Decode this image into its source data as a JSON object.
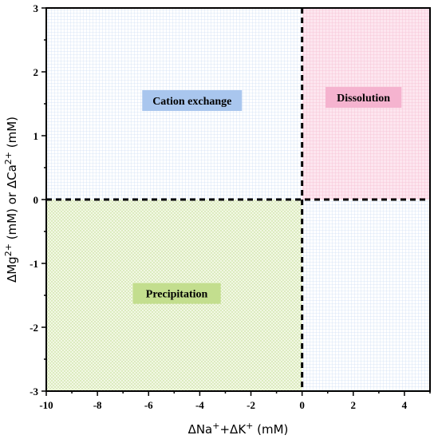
{
  "chart_data": {
    "type": "quadrant",
    "xlabel_parts": {
      "a": "ΔNa",
      "a_sup": "+",
      "b": "+ΔK",
      "b_sup": "+",
      "unit": " (mM)"
    },
    "ylabel_parts": {
      "a": "ΔMg",
      "a_sup": "2+",
      "b": " (mM) or ΔCa",
      "b_sup": "2+",
      "unit": " (mM)"
    },
    "xlim": [
      -10,
      5
    ],
    "ylim": [
      -3,
      3
    ],
    "x_ticks": [
      -10,
      -8,
      -6,
      -4,
      -2,
      0,
      2,
      4
    ],
    "y_ticks": [
      -3,
      -2,
      -1,
      0,
      1,
      2,
      3
    ],
    "dividers": {
      "x": 0,
      "y": 0
    },
    "regions": [
      {
        "label": "Cation exchange",
        "x_range": [
          -10,
          0
        ],
        "y_range": [
          0,
          3
        ],
        "pattern": "grid",
        "pattern_color": "#cfe0f5",
        "label_bg": "#a9c6ee",
        "label_x": -4.3,
        "label_y": 1.55
      },
      {
        "label": "Dissolution",
        "x_range": [
          0,
          5
        ],
        "y_range": [
          0,
          3
        ],
        "pattern": "grid",
        "pattern_color": "#f6bfd4",
        "fill": "#fde6ef",
        "label_bg": "#f5b3cf",
        "label_x": 2.4,
        "label_y": 1.6
      },
      {
        "label": "Precipitation",
        "x_range": [
          -10,
          0
        ],
        "y_range": [
          -3,
          0
        ],
        "pattern": "dots",
        "pattern_color": "#c9df9c",
        "fill": "#f2f8e4",
        "label_bg": "#c3de8e",
        "label_x": -4.9,
        "label_y": -1.47
      },
      {
        "label": "",
        "x_range": [
          0,
          5
        ],
        "y_range": [
          -3,
          0
        ],
        "pattern": "grid",
        "pattern_color": "#cfe0f5"
      }
    ]
  }
}
